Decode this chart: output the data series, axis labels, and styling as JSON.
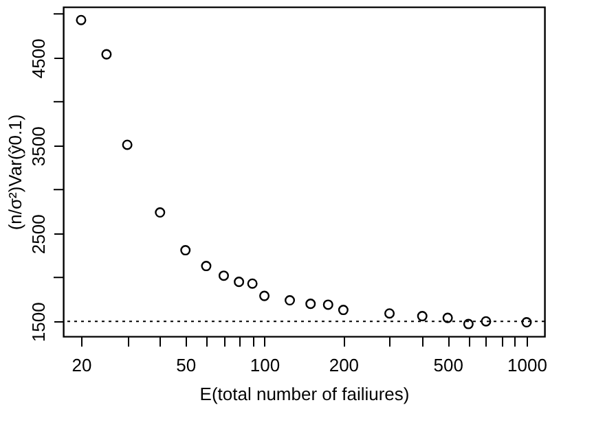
{
  "chart_data": {
    "type": "scatter",
    "xlabel": "E(total number of failiures)",
    "ylabel": "(n/σ²)Var(ŷ0.1)",
    "x": [
      20,
      25,
      30,
      40,
      50,
      60,
      70,
      80,
      90,
      100,
      125,
      150,
      175,
      200,
      300,
      400,
      500,
      600,
      700,
      1000
    ],
    "values": [
      4930,
      4540,
      3510,
      2740,
      2310,
      2130,
      2020,
      1950,
      1930,
      1790,
      1740,
      1700,
      1690,
      1630,
      1590,
      1560,
      1540,
      1470,
      1500,
      1490
    ],
    "color": "#000000",
    "marker": "circle",
    "log": "x",
    "grid": false,
    "legend": false,
    "xlim": [
      17.1,
      1170
    ],
    "ylim": [
      1330,
      5080
    ],
    "xticks": [
      20,
      {
        "value": 30,
        "label": null
      },
      {
        "value": 40,
        "label": null
      },
      50,
      {
        "value": 60,
        "label": null
      },
      {
        "value": 70,
        "label": null
      },
      {
        "value": 80,
        "label": null
      },
      {
        "value": 90,
        "label": null
      },
      100,
      200,
      {
        "value": 300,
        "label": null
      },
      {
        "value": 400,
        "label": null
      },
      500,
      {
        "value": 600,
        "label": null
      },
      {
        "value": 700,
        "label": null
      },
      {
        "value": 800,
        "label": null
      },
      {
        "value": 900,
        "label": null
      },
      1000
    ],
    "yticks": [
      1500,
      {
        "value": 2000,
        "label": null
      },
      2500,
      {
        "value": 3000,
        "label": null
      },
      3500,
      {
        "value": 4000,
        "label": null
      },
      4500,
      {
        "value": 5000,
        "label": null
      }
    ],
    "ref_lines": [
      {
        "axis": "y",
        "value": 1500,
        "color": "#000000",
        "line_style": "dotted"
      }
    ]
  }
}
